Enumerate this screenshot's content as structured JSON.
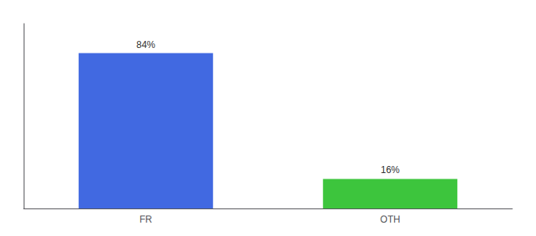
{
  "chart_data": {
    "type": "bar",
    "categories": [
      "FR",
      "OTH"
    ],
    "values": [
      84,
      16
    ],
    "value_labels": [
      "84%",
      "16%"
    ],
    "colors": [
      "#4169e1",
      "#3dc53d"
    ],
    "ylim": [
      0,
      100
    ],
    "data_labels": true,
    "tick_labels": "x",
    "grid": false
  }
}
